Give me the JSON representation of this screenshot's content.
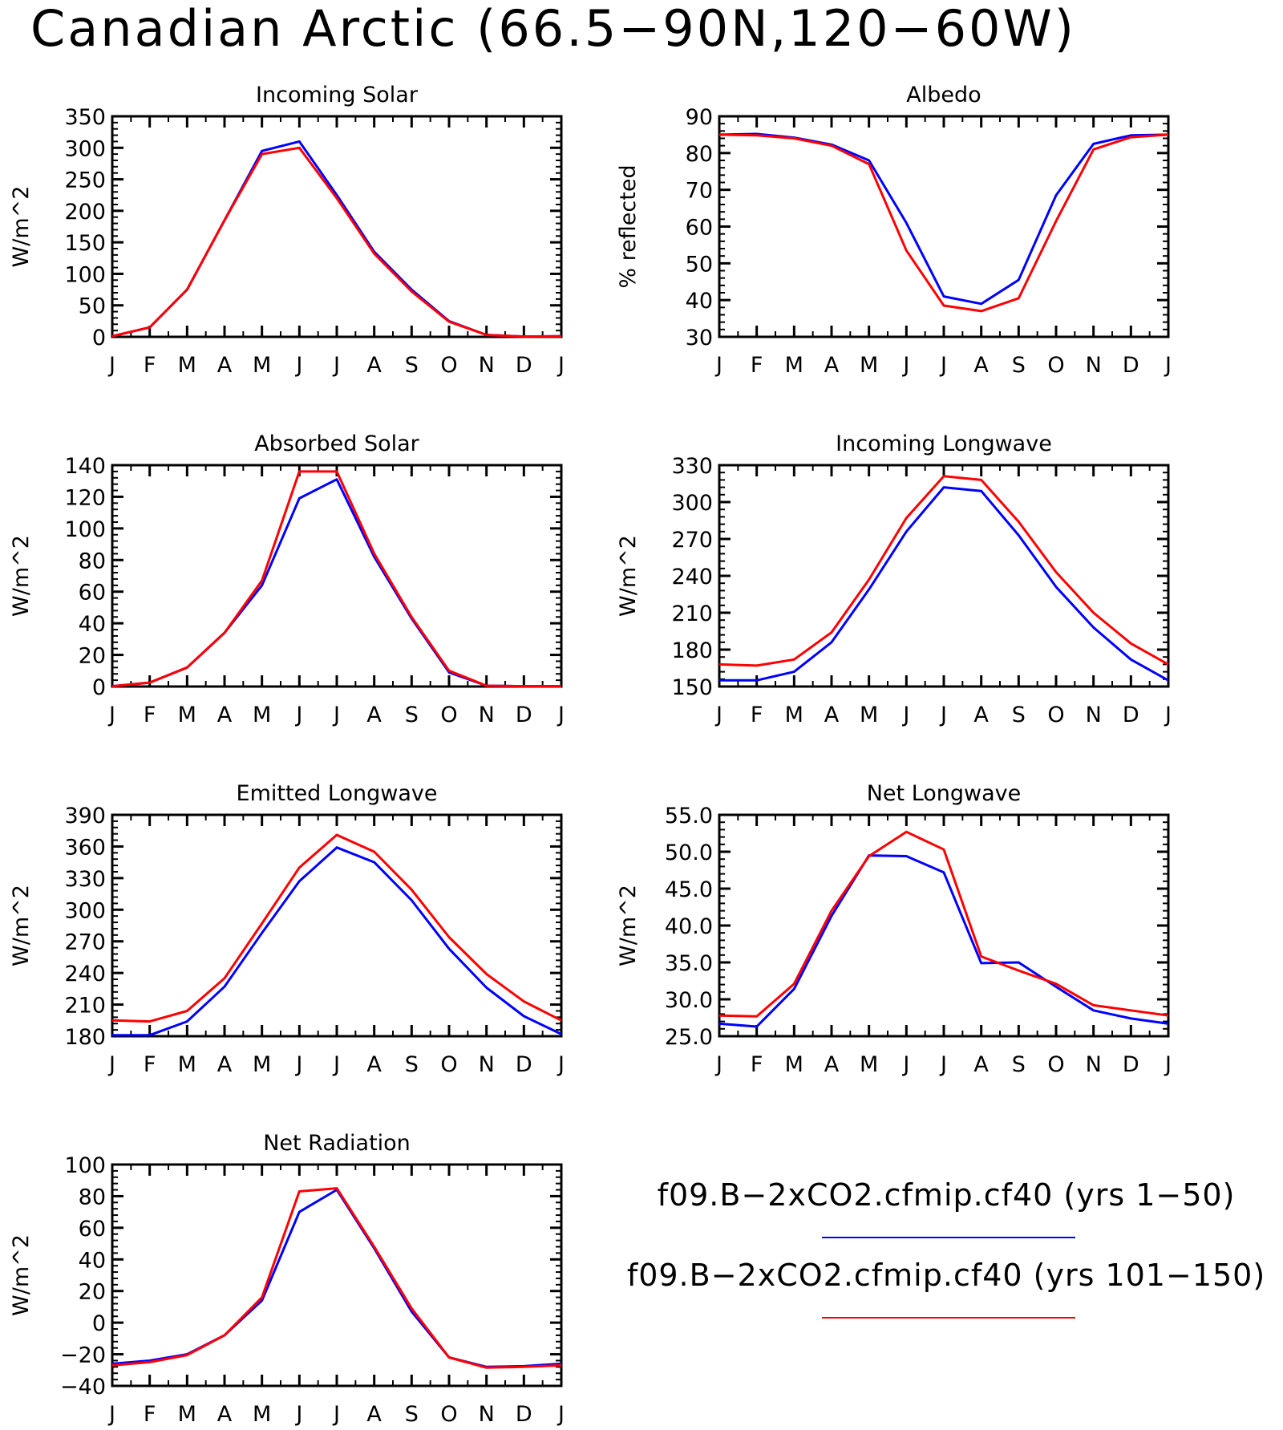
{
  "title": "Canadian Arctic (66.5−90N,120−60W)",
  "legend": {
    "entries": [
      {
        "label": "f09.B−2xCO2.cfmip.cf40 (yrs 1−50)",
        "color": "#0000ff"
      },
      {
        "label": "f09.B−2xCO2.cfmip.cf40 (yrs 101−150)",
        "color": "#ff0000"
      }
    ]
  },
  "chart_data": [
    {
      "type": "line",
      "title": "Incoming Solar",
      "ylabel": "W/m^2",
      "xlabel": "",
      "categories": [
        "J",
        "F",
        "M",
        "A",
        "M",
        "J",
        "J",
        "A",
        "S",
        "O",
        "N",
        "D",
        "J"
      ],
      "ylim": [
        0,
        350
      ],
      "yticks": [
        0,
        50,
        100,
        150,
        200,
        250,
        300,
        350
      ],
      "ytick_labels": [
        "0",
        "50",
        "100",
        "150",
        "200",
        "250",
        "300",
        "350"
      ],
      "series": [
        {
          "name": "f09.B−2xCO2.cfmip.cf40 (yrs 1−50)",
          "color": "#0000ff",
          "values": [
            1,
            15,
            75,
            185,
            295,
            310,
            225,
            135,
            75,
            25,
            3,
            0.5,
            1
          ]
        },
        {
          "name": "f09.B−2xCO2.cfmip.cf40 (yrs 101−150)",
          "color": "#ff0000",
          "values": [
            1,
            15,
            75,
            185,
            290,
            300,
            220,
            132,
            72,
            24,
            3,
            0.5,
            1
          ]
        }
      ]
    },
    {
      "type": "line",
      "title": "Albedo",
      "ylabel": "% reflected",
      "xlabel": "",
      "categories": [
        "J",
        "F",
        "M",
        "A",
        "M",
        "J",
        "J",
        "A",
        "S",
        "O",
        "N",
        "D",
        "J"
      ],
      "ylim": [
        30,
        90
      ],
      "yticks": [
        30,
        40,
        50,
        60,
        70,
        80,
        90
      ],
      "ytick_labels": [
        "30",
        "40",
        "50",
        "60",
        "70",
        "80",
        "90"
      ],
      "series": [
        {
          "name": "f09.B−2xCO2.cfmip.cf40 (yrs 1−50)",
          "color": "#0000ff",
          "values": [
            85,
            85.2,
            84.2,
            82.3,
            78,
            61,
            41,
            39,
            45.5,
            68.5,
            82.5,
            84.8,
            85
          ]
        },
        {
          "name": "f09.B−2xCO2.cfmip.cf40 (yrs 101−150)",
          "color": "#ff0000",
          "values": [
            85,
            84.8,
            84,
            82,
            77,
            53.5,
            38.5,
            37,
            40.5,
            61.5,
            81,
            84.3,
            85
          ]
        }
      ]
    },
    {
      "type": "line",
      "title": "Absorbed Solar",
      "ylabel": "W/m^2",
      "xlabel": "",
      "categories": [
        "J",
        "F",
        "M",
        "A",
        "M",
        "J",
        "J",
        "A",
        "S",
        "O",
        "N",
        "D",
        "J"
      ],
      "ylim": [
        0,
        140
      ],
      "yticks": [
        0,
        20,
        40,
        60,
        80,
        100,
        120,
        140
      ],
      "ytick_labels": [
        "0",
        "20",
        "40",
        "60",
        "80",
        "100",
        "120",
        "140"
      ],
      "series": [
        {
          "name": "f09.B−2xCO2.cfmip.cf40 (yrs 1−50)",
          "color": "#0000ff",
          "values": [
            0.2,
            2.5,
            12,
            34,
            64,
            119,
            131,
            82,
            43,
            9,
            0.5,
            0.2,
            0.2
          ]
        },
        {
          "name": "f09.B−2xCO2.cfmip.cf40 (yrs 101−150)",
          "color": "#ff0000",
          "values": [
            0.2,
            2.5,
            12,
            34,
            67,
            136,
            136,
            84,
            44,
            10,
            0.5,
            0.2,
            0.2
          ]
        }
      ]
    },
    {
      "type": "line",
      "title": "Incoming Longwave",
      "ylabel": "W/m^2",
      "xlabel": "",
      "categories": [
        "J",
        "F",
        "M",
        "A",
        "M",
        "J",
        "J",
        "A",
        "S",
        "O",
        "N",
        "D",
        "J"
      ],
      "ylim": [
        150,
        330
      ],
      "yticks": [
        150,
        180,
        210,
        240,
        270,
        300,
        330
      ],
      "ytick_labels": [
        "150",
        "180",
        "210",
        "240",
        "270",
        "300",
        "330"
      ],
      "series": [
        {
          "name": "f09.B−2xCO2.cfmip.cf40 (yrs 1−50)",
          "color": "#0000ff",
          "values": [
            155,
            155,
            162,
            186,
            229,
            276,
            312,
            309,
            273,
            231,
            198,
            172,
            155
          ]
        },
        {
          "name": "f09.B−2xCO2.cfmip.cf40 (yrs 101−150)",
          "color": "#ff0000",
          "values": [
            168,
            167,
            172,
            194,
            237,
            287,
            321,
            318,
            284,
            243,
            210,
            185,
            168
          ]
        }
      ]
    },
    {
      "type": "line",
      "title": "Emitted Longwave",
      "ylabel": "W/m^2",
      "xlabel": "",
      "categories": [
        "J",
        "F",
        "M",
        "A",
        "M",
        "J",
        "J",
        "A",
        "S",
        "O",
        "N",
        "D",
        "J"
      ],
      "ylim": [
        180,
        390
      ],
      "yticks": [
        180,
        210,
        240,
        270,
        300,
        330,
        360,
        390
      ],
      "ytick_labels": [
        "180",
        "210",
        "240",
        "270",
        "300",
        "330",
        "360",
        "390"
      ],
      "series": [
        {
          "name": "f09.B−2xCO2.cfmip.cf40 (yrs 1−50)",
          "color": "#0000ff",
          "values": [
            181,
            181,
            194,
            227,
            278,
            327,
            359,
            345,
            309,
            263,
            226,
            199,
            182
          ]
        },
        {
          "name": "f09.B−2xCO2.cfmip.cf40 (yrs 101−150)",
          "color": "#ff0000",
          "values": [
            195,
            194,
            204,
            235,
            287,
            340,
            371,
            355,
            319,
            274,
            239,
            213,
            195
          ]
        }
      ]
    },
    {
      "type": "line",
      "title": "Net Longwave",
      "ylabel": "W/m^2",
      "xlabel": "",
      "categories": [
        "J",
        "F",
        "M",
        "A",
        "M",
        "J",
        "J",
        "A",
        "S",
        "O",
        "N",
        "D",
        "J"
      ],
      "ylim": [
        25,
        55
      ],
      "yticks": [
        25,
        30,
        35,
        40,
        45,
        50,
        55
      ],
      "ytick_labels": [
        "25.0",
        "30.0",
        "35.0",
        "40.0",
        "45.0",
        "50.0",
        "55.0"
      ],
      "series": [
        {
          "name": "f09.B−2xCO2.cfmip.cf40 (yrs 1−50)",
          "color": "#0000ff",
          "values": [
            26.7,
            26.3,
            31.4,
            41.3,
            49.5,
            49.4,
            47.2,
            34.9,
            35.0,
            31.7,
            28.5,
            27.4,
            26.7
          ]
        },
        {
          "name": "f09.B−2xCO2.cfmip.cf40 (yrs 101−150)",
          "color": "#ff0000",
          "values": [
            27.8,
            27.7,
            32.1,
            42.0,
            49.4,
            52.7,
            50.3,
            35.8,
            33.9,
            32.1,
            29.2,
            28.5,
            27.8
          ]
        }
      ]
    },
    {
      "type": "line",
      "title": "Net Radiation",
      "ylabel": "W/m^2",
      "xlabel": "",
      "categories": [
        "J",
        "F",
        "M",
        "A",
        "M",
        "J",
        "J",
        "A",
        "S",
        "O",
        "N",
        "D",
        "J"
      ],
      "ylim": [
        -40,
        100
      ],
      "yticks": [
        -40,
        -20,
        0,
        20,
        40,
        60,
        80,
        100
      ],
      "ytick_labels": [
        "−40",
        "−20",
        "0",
        "20",
        "40",
        "60",
        "80",
        "100"
      ],
      "series": [
        {
          "name": "f09.B−2xCO2.cfmip.cf40 (yrs 1−50)",
          "color": "#0000ff",
          "values": [
            -26,
            -24,
            -20,
            -8,
            14,
            70,
            84,
            47,
            7,
            -22,
            -28,
            -27.5,
            -26
          ]
        },
        {
          "name": "f09.B−2xCO2.cfmip.cf40 (yrs 101−150)",
          "color": "#ff0000",
          "values": [
            -27,
            -25,
            -20.5,
            -8,
            16,
            83,
            85,
            48,
            9,
            -22,
            -28.5,
            -28,
            -27
          ]
        }
      ]
    }
  ]
}
